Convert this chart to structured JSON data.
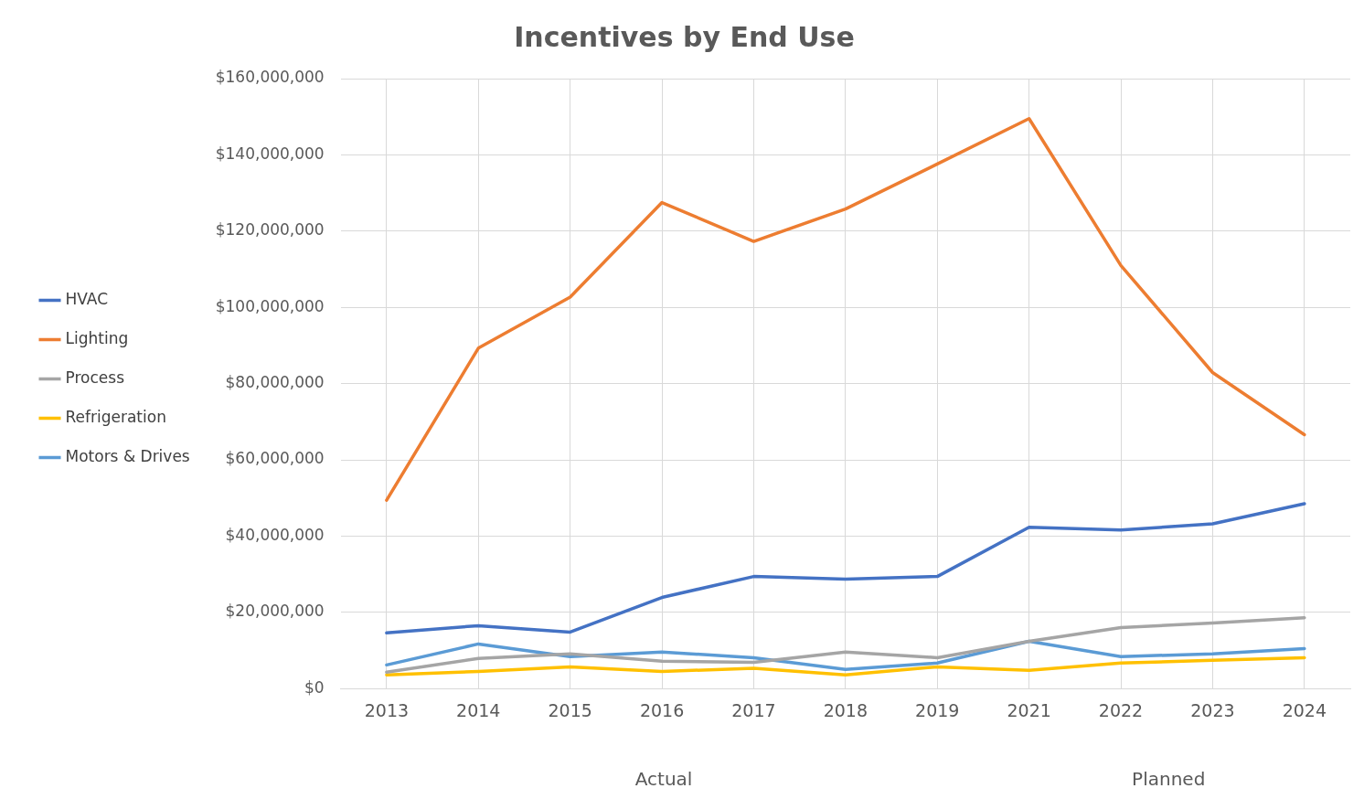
{
  "chart_data": {
    "type": "line",
    "title": "Incentives by End Use",
    "categories": [
      "2013",
      "2014",
      "2015",
      "2016",
      "2017",
      "2018",
      "2019",
      "2021",
      "2022",
      "2023",
      "2024"
    ],
    "series": [
      {
        "name": "HVAC",
        "color": "#4472c4",
        "values": [
          14600000,
          16500000,
          14800000,
          23900000,
          29400000,
          28700000,
          29400000,
          42300000,
          41600000,
          43200000,
          48500000
        ]
      },
      {
        "name": "Lighting",
        "color": "#ed7d31",
        "values": [
          49400000,
          89300000,
          102700000,
          127500000,
          117300000,
          125800000,
          137600000,
          149500000,
          111000000,
          82900000,
          66600000
        ]
      },
      {
        "name": "Process",
        "color": "#a5a5a5",
        "values": [
          4300000,
          7900000,
          9100000,
          7200000,
          6900000,
          9600000,
          8100000,
          12400000,
          16000000,
          17200000,
          18600000
        ]
      },
      {
        "name": "Refrigeration",
        "color": "#ffc000",
        "values": [
          3600000,
          4500000,
          5700000,
          4500000,
          5300000,
          3600000,
          5700000,
          4800000,
          6700000,
          7400000,
          8100000
        ]
      },
      {
        "name": "Motors & Drives",
        "color": "#5b9bd5",
        "values": [
          6200000,
          11700000,
          8400000,
          9600000,
          8100000,
          5000000,
          6700000,
          12400000,
          8400000,
          9100000,
          10500000
        ]
      }
    ],
    "ylim": [
      0,
      160000000
    ],
    "yticks": [
      {
        "value": 0,
        "label": "$0"
      },
      {
        "value": 20000000,
        "label": "$20,000,000"
      },
      {
        "value": 40000000,
        "label": "$40,000,000"
      },
      {
        "value": 60000000,
        "label": "$60,000,000"
      },
      {
        "value": 80000000,
        "label": "$80,000,000"
      },
      {
        "value": 100000000,
        "label": "$100,000,000"
      },
      {
        "value": 120000000,
        "label": "$120,000,000"
      },
      {
        "value": 140000000,
        "label": "$140,000,000"
      },
      {
        "value": 160000000,
        "label": "$160,000,000"
      }
    ],
    "grid": true,
    "legend": "left",
    "marker": "none",
    "line_style": "solid",
    "annotations": [
      "Actual",
      "Planned"
    ]
  }
}
